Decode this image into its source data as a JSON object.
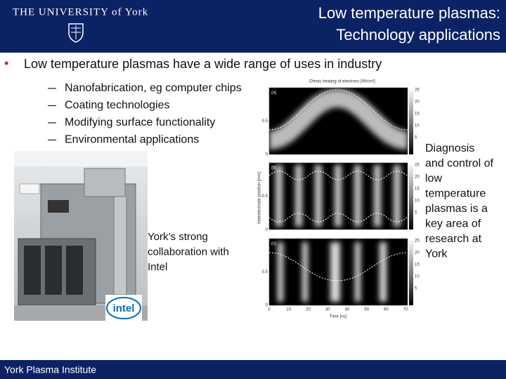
{
  "header": {
    "logo": "THE UNIVERSITY of York",
    "title": [
      "Low temperature plasmas:",
      "Technology applications"
    ]
  },
  "bullet": "Low temperature plasmas have a wide range of uses in industry",
  "sub_bullets": [
    "Nanofabrication, eg computer chips",
    "Coating technologies",
    "Modifying surface functionality",
    "Environmental applications"
  ],
  "photo_caption": [
    "York’s strong",
    "collaboration with",
    "Intel"
  ],
  "intel_logo": "intel",
  "figure": {
    "title": "Ohmic heating of electrons [W/cm³]",
    "y_label": "Interelectrode position [mm]",
    "x_label": "Time [ns]",
    "panels": [
      "(a)",
      "(b)",
      "(c)"
    ],
    "x_ticks": [
      "0",
      "10",
      "20",
      "30",
      "40",
      "50",
      "60",
      "70"
    ],
    "y_ticks": [
      "0",
      "0.5"
    ],
    "colorbar_ticks": [
      "25",
      "20",
      "15",
      "10",
      "5"
    ]
  },
  "side_text": [
    "Diagnosis",
    "and control of",
    "low",
    "temperature",
    "plasmas is a",
    "key area of",
    "research at",
    "York"
  ],
  "footer": "York Plasma Institute"
}
